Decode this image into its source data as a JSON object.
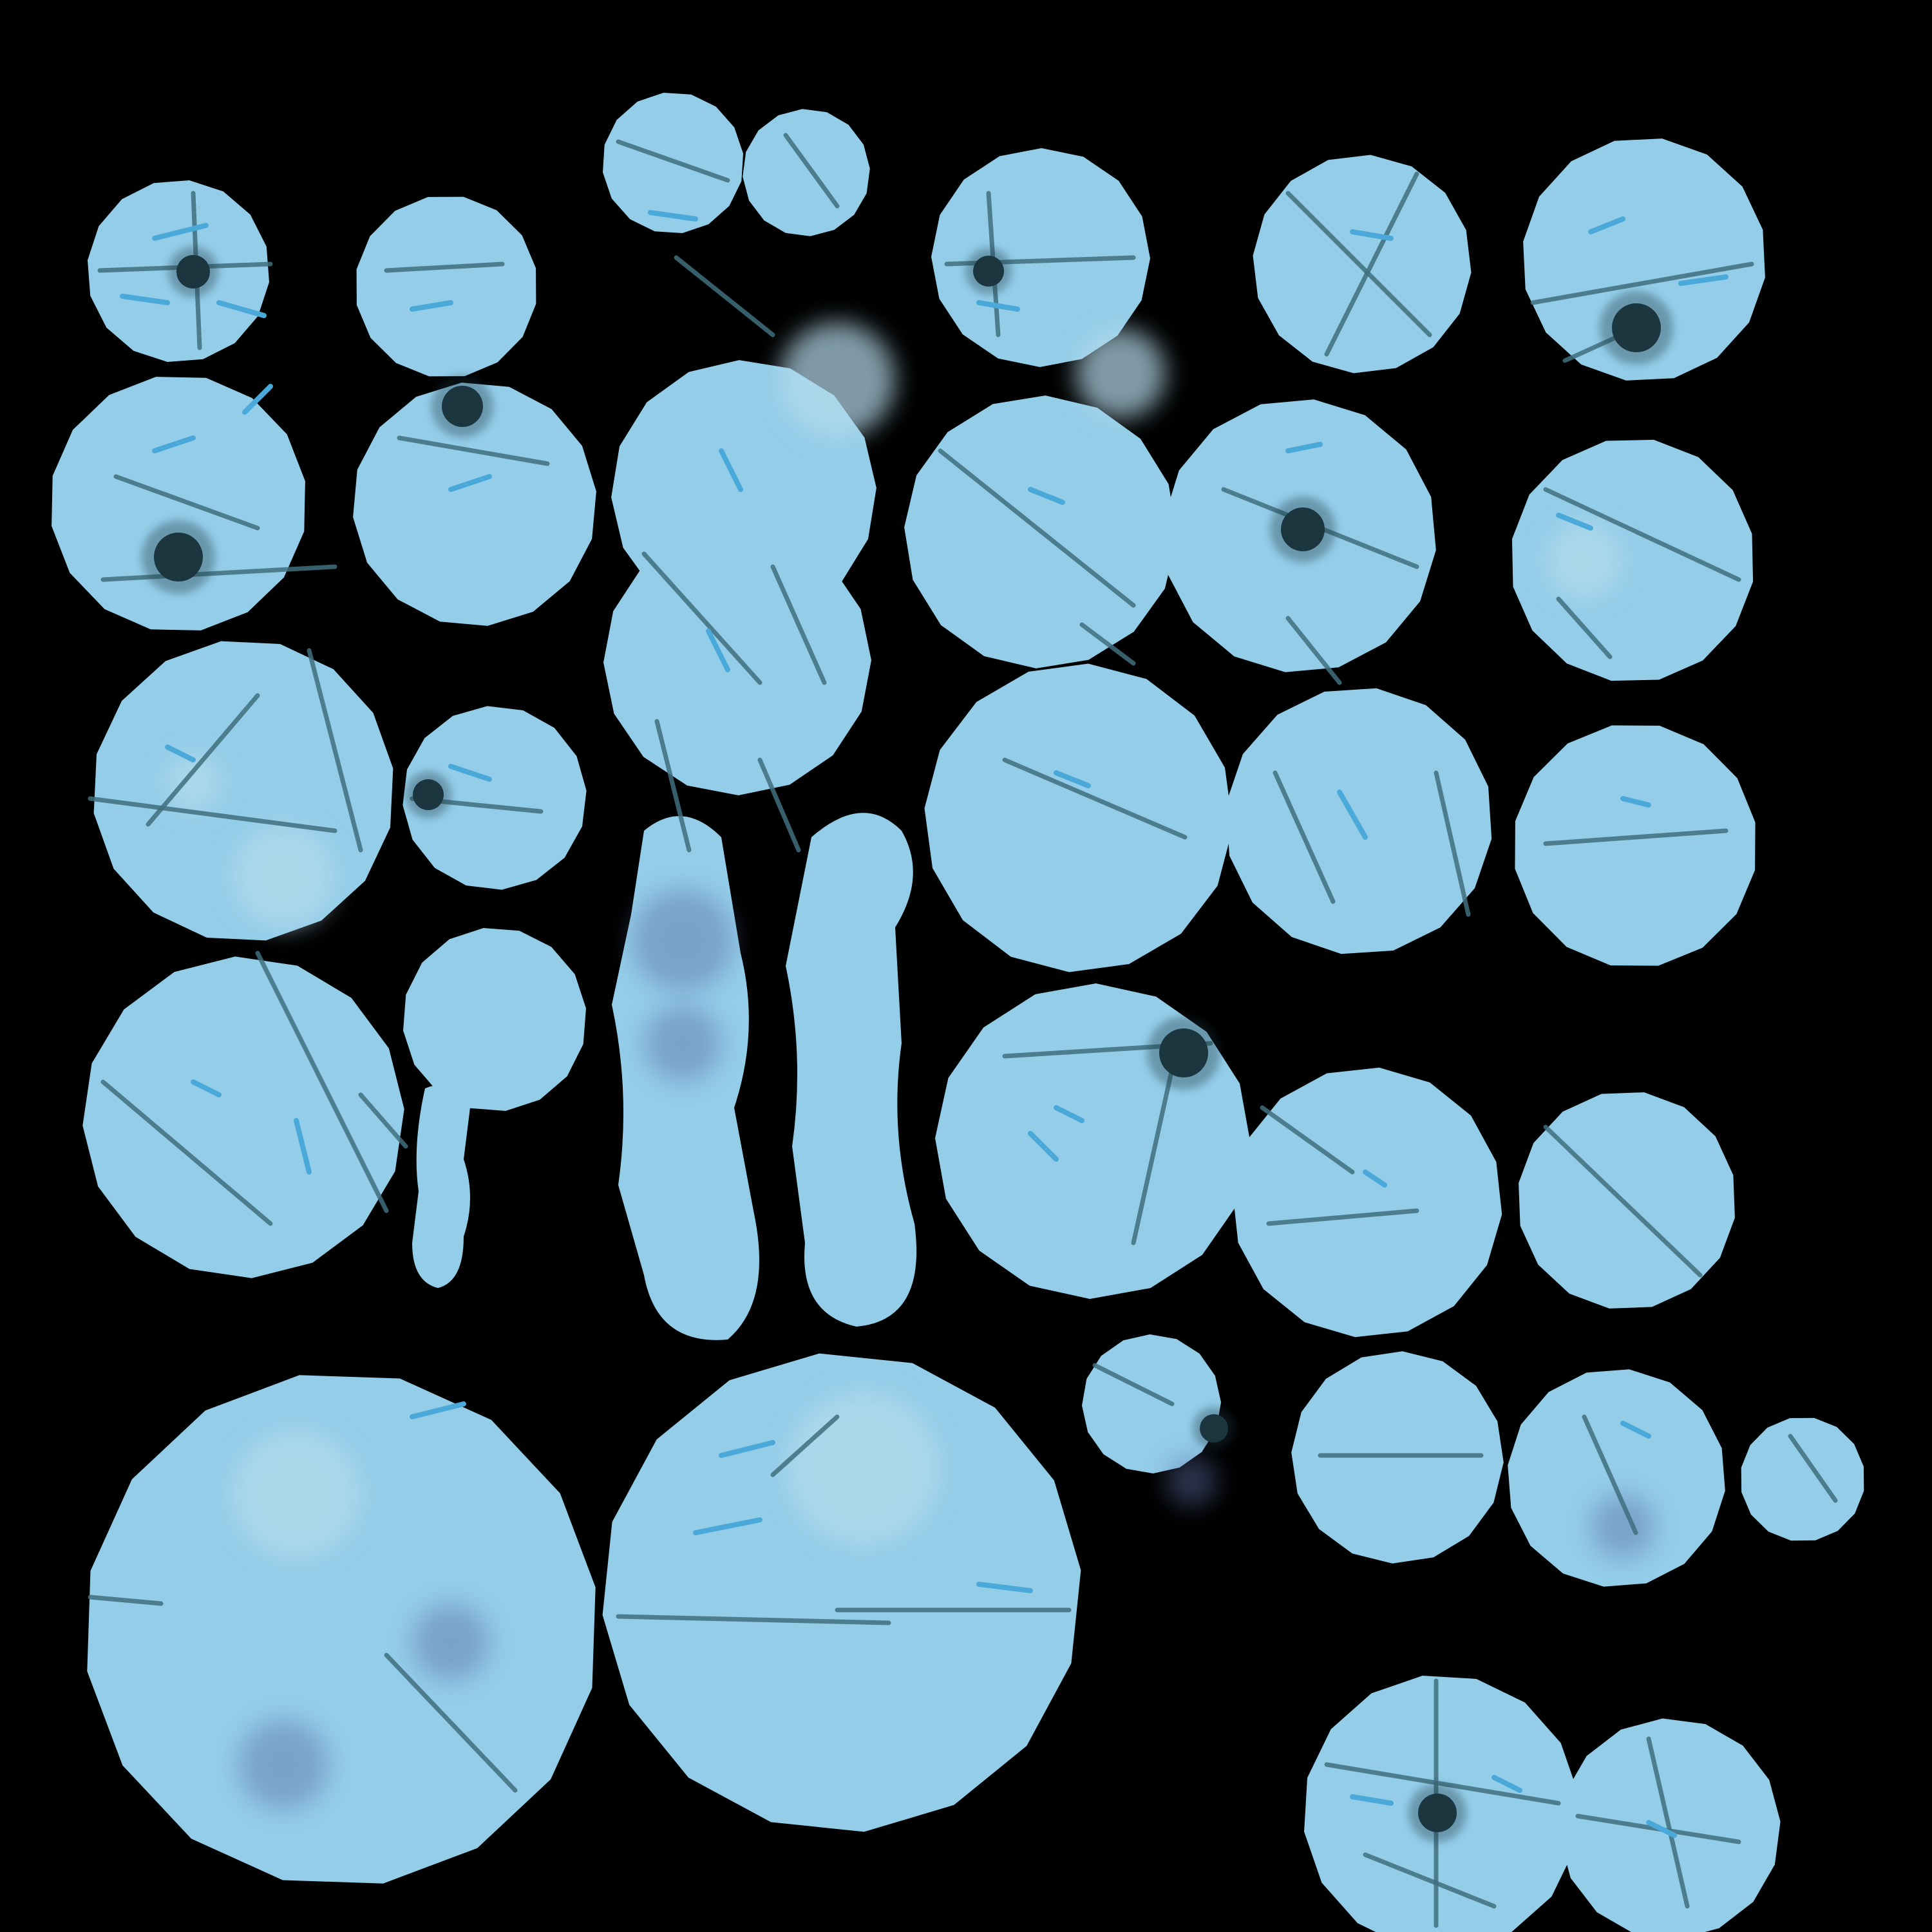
{
  "texture_atlas": {
    "background_color": "#000000",
    "island_color": "#93cde8",
    "island_shade_color": "#b6dced",
    "vein_dark_color": "#3f6f7e",
    "vein_light_color": "#4aa9d9",
    "spot_color": "#1c3640",
    "bruise_color": "#5f6fa8"
  }
}
